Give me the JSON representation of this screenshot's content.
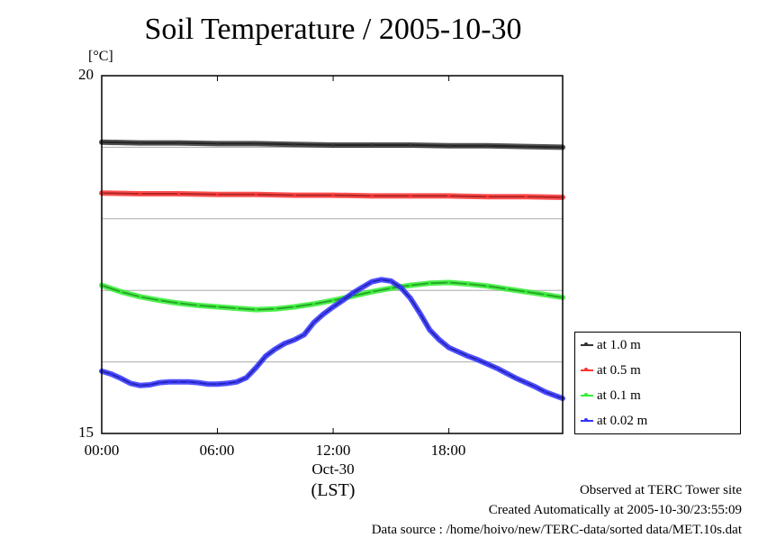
{
  "chart_data": {
    "type": "line",
    "title": "Soil Temperature / 2005-10-30",
    "ylabel_unit": "[°C]",
    "xlabel": "(LST)",
    "date_label": "Oct-30",
    "ylim": [
      15,
      20
    ],
    "y_ticks": [
      "20",
      "15"
    ],
    "y_gridlines": [
      16,
      17,
      18,
      19
    ],
    "xlim": [
      0,
      23.9
    ],
    "x_ticks": [
      {
        "value": 0,
        "label": "00:00"
      },
      {
        "value": 6,
        "label": "06:00"
      },
      {
        "value": 12,
        "label": "12:00"
      },
      {
        "value": 18,
        "label": "18:00"
      }
    ],
    "grid": "horizontal",
    "legend_position": "right",
    "series": [
      {
        "name": "at 1.0 m",
        "color": "#333333",
        "x": [
          0,
          2,
          4,
          6,
          8,
          10,
          12,
          14,
          16,
          18,
          20,
          22,
          23.9
        ],
        "y": [
          19.07,
          19.06,
          19.06,
          19.05,
          19.05,
          19.04,
          19.03,
          19.03,
          19.03,
          19.02,
          19.02,
          19.01,
          19.0
        ]
      },
      {
        "name": "at 0.5 m",
        "color": "#ff3333",
        "x": [
          0,
          2,
          4,
          6,
          8,
          10,
          12,
          14,
          16,
          18,
          20,
          22,
          23.9
        ],
        "y": [
          18.36,
          18.35,
          18.35,
          18.34,
          18.34,
          18.33,
          18.33,
          18.32,
          18.32,
          18.32,
          18.31,
          18.31,
          18.3
        ]
      },
      {
        "name": "at 0.1 m",
        "color": "#33ee33",
        "x": [
          0,
          1,
          2,
          3,
          4,
          5,
          6,
          7,
          8,
          9,
          10,
          11,
          12,
          13,
          14,
          15,
          16,
          17,
          18,
          19,
          20,
          21,
          22,
          23,
          23.9
        ],
        "y": [
          17.07,
          16.98,
          16.91,
          16.86,
          16.82,
          16.79,
          16.77,
          16.75,
          16.73,
          16.74,
          16.77,
          16.81,
          16.86,
          16.92,
          16.98,
          17.03,
          17.07,
          17.1,
          17.11,
          17.09,
          17.06,
          17.02,
          16.98,
          16.94,
          16.9
        ]
      },
      {
        "name": "at 0.02 m",
        "color": "#3333ff",
        "x": [
          0,
          0.5,
          1,
          1.5,
          2,
          2.5,
          3,
          3.5,
          4,
          4.5,
          5,
          5.5,
          6,
          6.5,
          7,
          7.5,
          8,
          8.5,
          9,
          9.5,
          10,
          10.5,
          11,
          11.5,
          12,
          12.5,
          13,
          13.5,
          14,
          14.5,
          15,
          15.5,
          16,
          16.5,
          17,
          17.5,
          18,
          18.5,
          19,
          19.5,
          20,
          20.5,
          21,
          21.5,
          22,
          22.5,
          23,
          23.5,
          23.9
        ],
        "y": [
          15.87,
          15.83,
          15.77,
          15.7,
          15.67,
          15.68,
          15.71,
          15.72,
          15.72,
          15.72,
          15.71,
          15.69,
          15.69,
          15.7,
          15.72,
          15.78,
          15.92,
          16.08,
          16.18,
          16.26,
          16.31,
          16.38,
          16.55,
          16.67,
          16.77,
          16.86,
          16.96,
          17.04,
          17.12,
          17.15,
          17.13,
          17.04,
          16.89,
          16.68,
          16.45,
          16.31,
          16.2,
          16.14,
          16.08,
          16.03,
          15.97,
          15.91,
          15.84,
          15.77,
          15.71,
          15.65,
          15.58,
          15.53,
          15.49
        ]
      }
    ]
  },
  "footer": {
    "line1": "Observed at TERC Tower site",
    "line2": "Created Automatically at 2005-10-30/23:55:09",
    "line3": "Data source : /home/hoivo/new/TERC-data/sorted  data/MET.10s.dat"
  }
}
